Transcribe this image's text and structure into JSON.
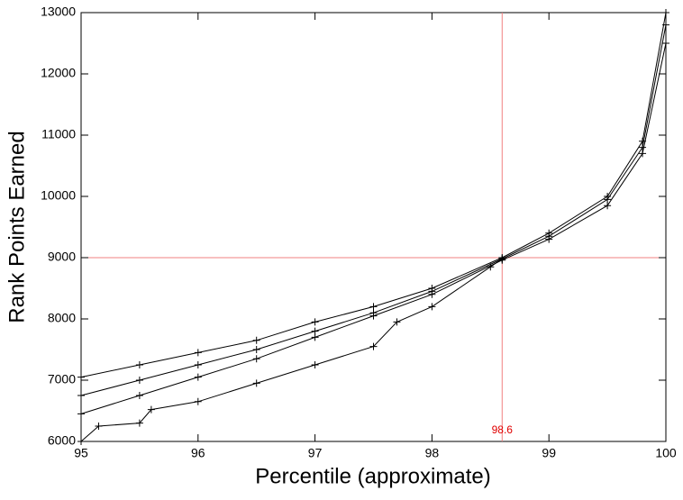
{
  "chart_data": {
    "type": "line",
    "x_label": "Percentile (approximate)",
    "y_label": "Rank Points Earned",
    "xlim": [
      95,
      100
    ],
    "xticks": [
      95,
      96,
      97,
      98,
      99,
      100
    ],
    "ylim": [
      6000,
      13000
    ],
    "yticks": [
      6000,
      7000,
      8000,
      9000,
      10000,
      11000,
      12000,
      13000
    ],
    "marker": "+",
    "reference_lines": {
      "x": 98.6,
      "y": 9000,
      "color": "#f08080"
    },
    "series": [
      {
        "color": "#000000",
        "x": [
          95,
          95.5,
          96,
          96.5,
          97,
          97.5,
          98,
          98.6,
          99,
          99.5,
          99.8,
          100
        ],
        "values": [
          7050,
          7250,
          7450,
          7650,
          7950,
          8200,
          8500,
          9000,
          9400,
          10000,
          10900,
          13000
        ]
      },
      {
        "color": "#000000",
        "x": [
          95,
          95.5,
          96,
          96.5,
          97,
          97.5,
          98,
          98.6,
          99,
          99.5,
          99.8,
          100
        ],
        "values": [
          6750,
          7000,
          7250,
          7500,
          7800,
          8100,
          8450,
          8980,
          9350,
          9950,
          10800,
          12800
        ]
      },
      {
        "color": "#000000",
        "x": [
          95,
          95.5,
          96,
          96.5,
          97,
          97.5,
          98,
          98.6,
          99,
          99.5,
          99.8,
          100
        ],
        "values": [
          6450,
          6750,
          7050,
          7350,
          7700,
          8050,
          8400,
          8960,
          9300,
          9850,
          10700,
          12500
        ]
      },
      {
        "color": "#000000",
        "x": [
          95,
          95.15,
          95.5,
          95.6,
          96,
          96.5,
          97,
          97.5,
          97.7,
          98,
          98.5,
          98.6
        ],
        "values": [
          6000,
          6250,
          6300,
          6520,
          6650,
          6950,
          7250,
          7550,
          7950,
          8200,
          8850,
          8980
        ]
      }
    ]
  }
}
